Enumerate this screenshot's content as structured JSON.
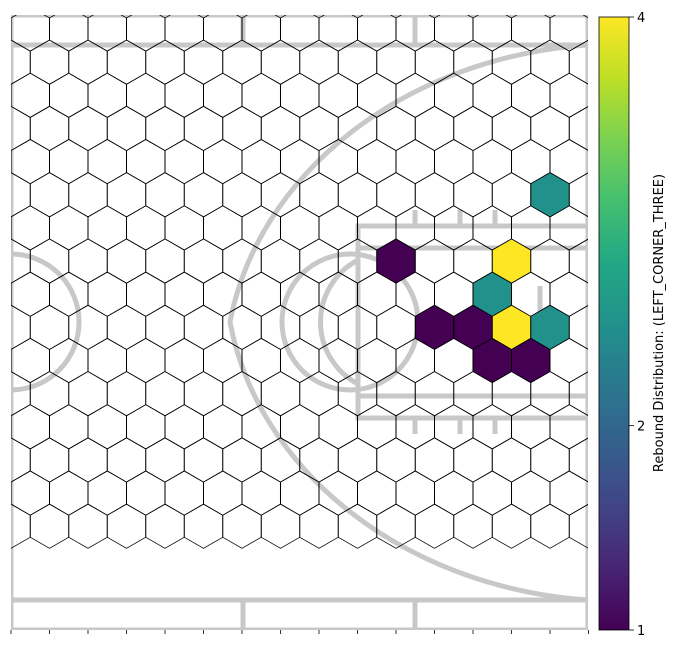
{
  "chart_data": {
    "type": "heatmap",
    "subtype": "hexbin",
    "title": "",
    "background": "basketball half-court outline",
    "hex_grid": {
      "columns": 15,
      "rows": 16,
      "orientation": "pointy-top"
    },
    "cells": [
      {
        "col": 13,
        "row": 5,
        "value": 2.5
      },
      {
        "col": 9,
        "row": 7,
        "value": 1
      },
      {
        "col": 12,
        "row": 7,
        "value": 4
      },
      {
        "col": 12,
        "row": 8,
        "value": 2.5
      },
      {
        "col": 10,
        "row": 9,
        "value": 1
      },
      {
        "col": 11,
        "row": 9,
        "value": 1
      },
      {
        "col": 12,
        "row": 9,
        "value": 4
      },
      {
        "col": 13,
        "row": 9,
        "value": 2.5
      },
      {
        "col": 12,
        "row": 10,
        "value": 1
      },
      {
        "col": 13,
        "row": 10,
        "value": 1
      }
    ],
    "colorbar": {
      "label": "Rebound Distribution: (LEFT_CORNER_THREE)",
      "colormap": "viridis",
      "min": 1,
      "max": 4,
      "ticks": [
        {
          "value": 4,
          "label": "4"
        },
        {
          "value": 2,
          "label": "2"
        },
        {
          "value": 1,
          "label": "1"
        }
      ]
    },
    "colors": {
      "court_lines": "#c8c8c8",
      "hex_edge": "#000000"
    }
  }
}
